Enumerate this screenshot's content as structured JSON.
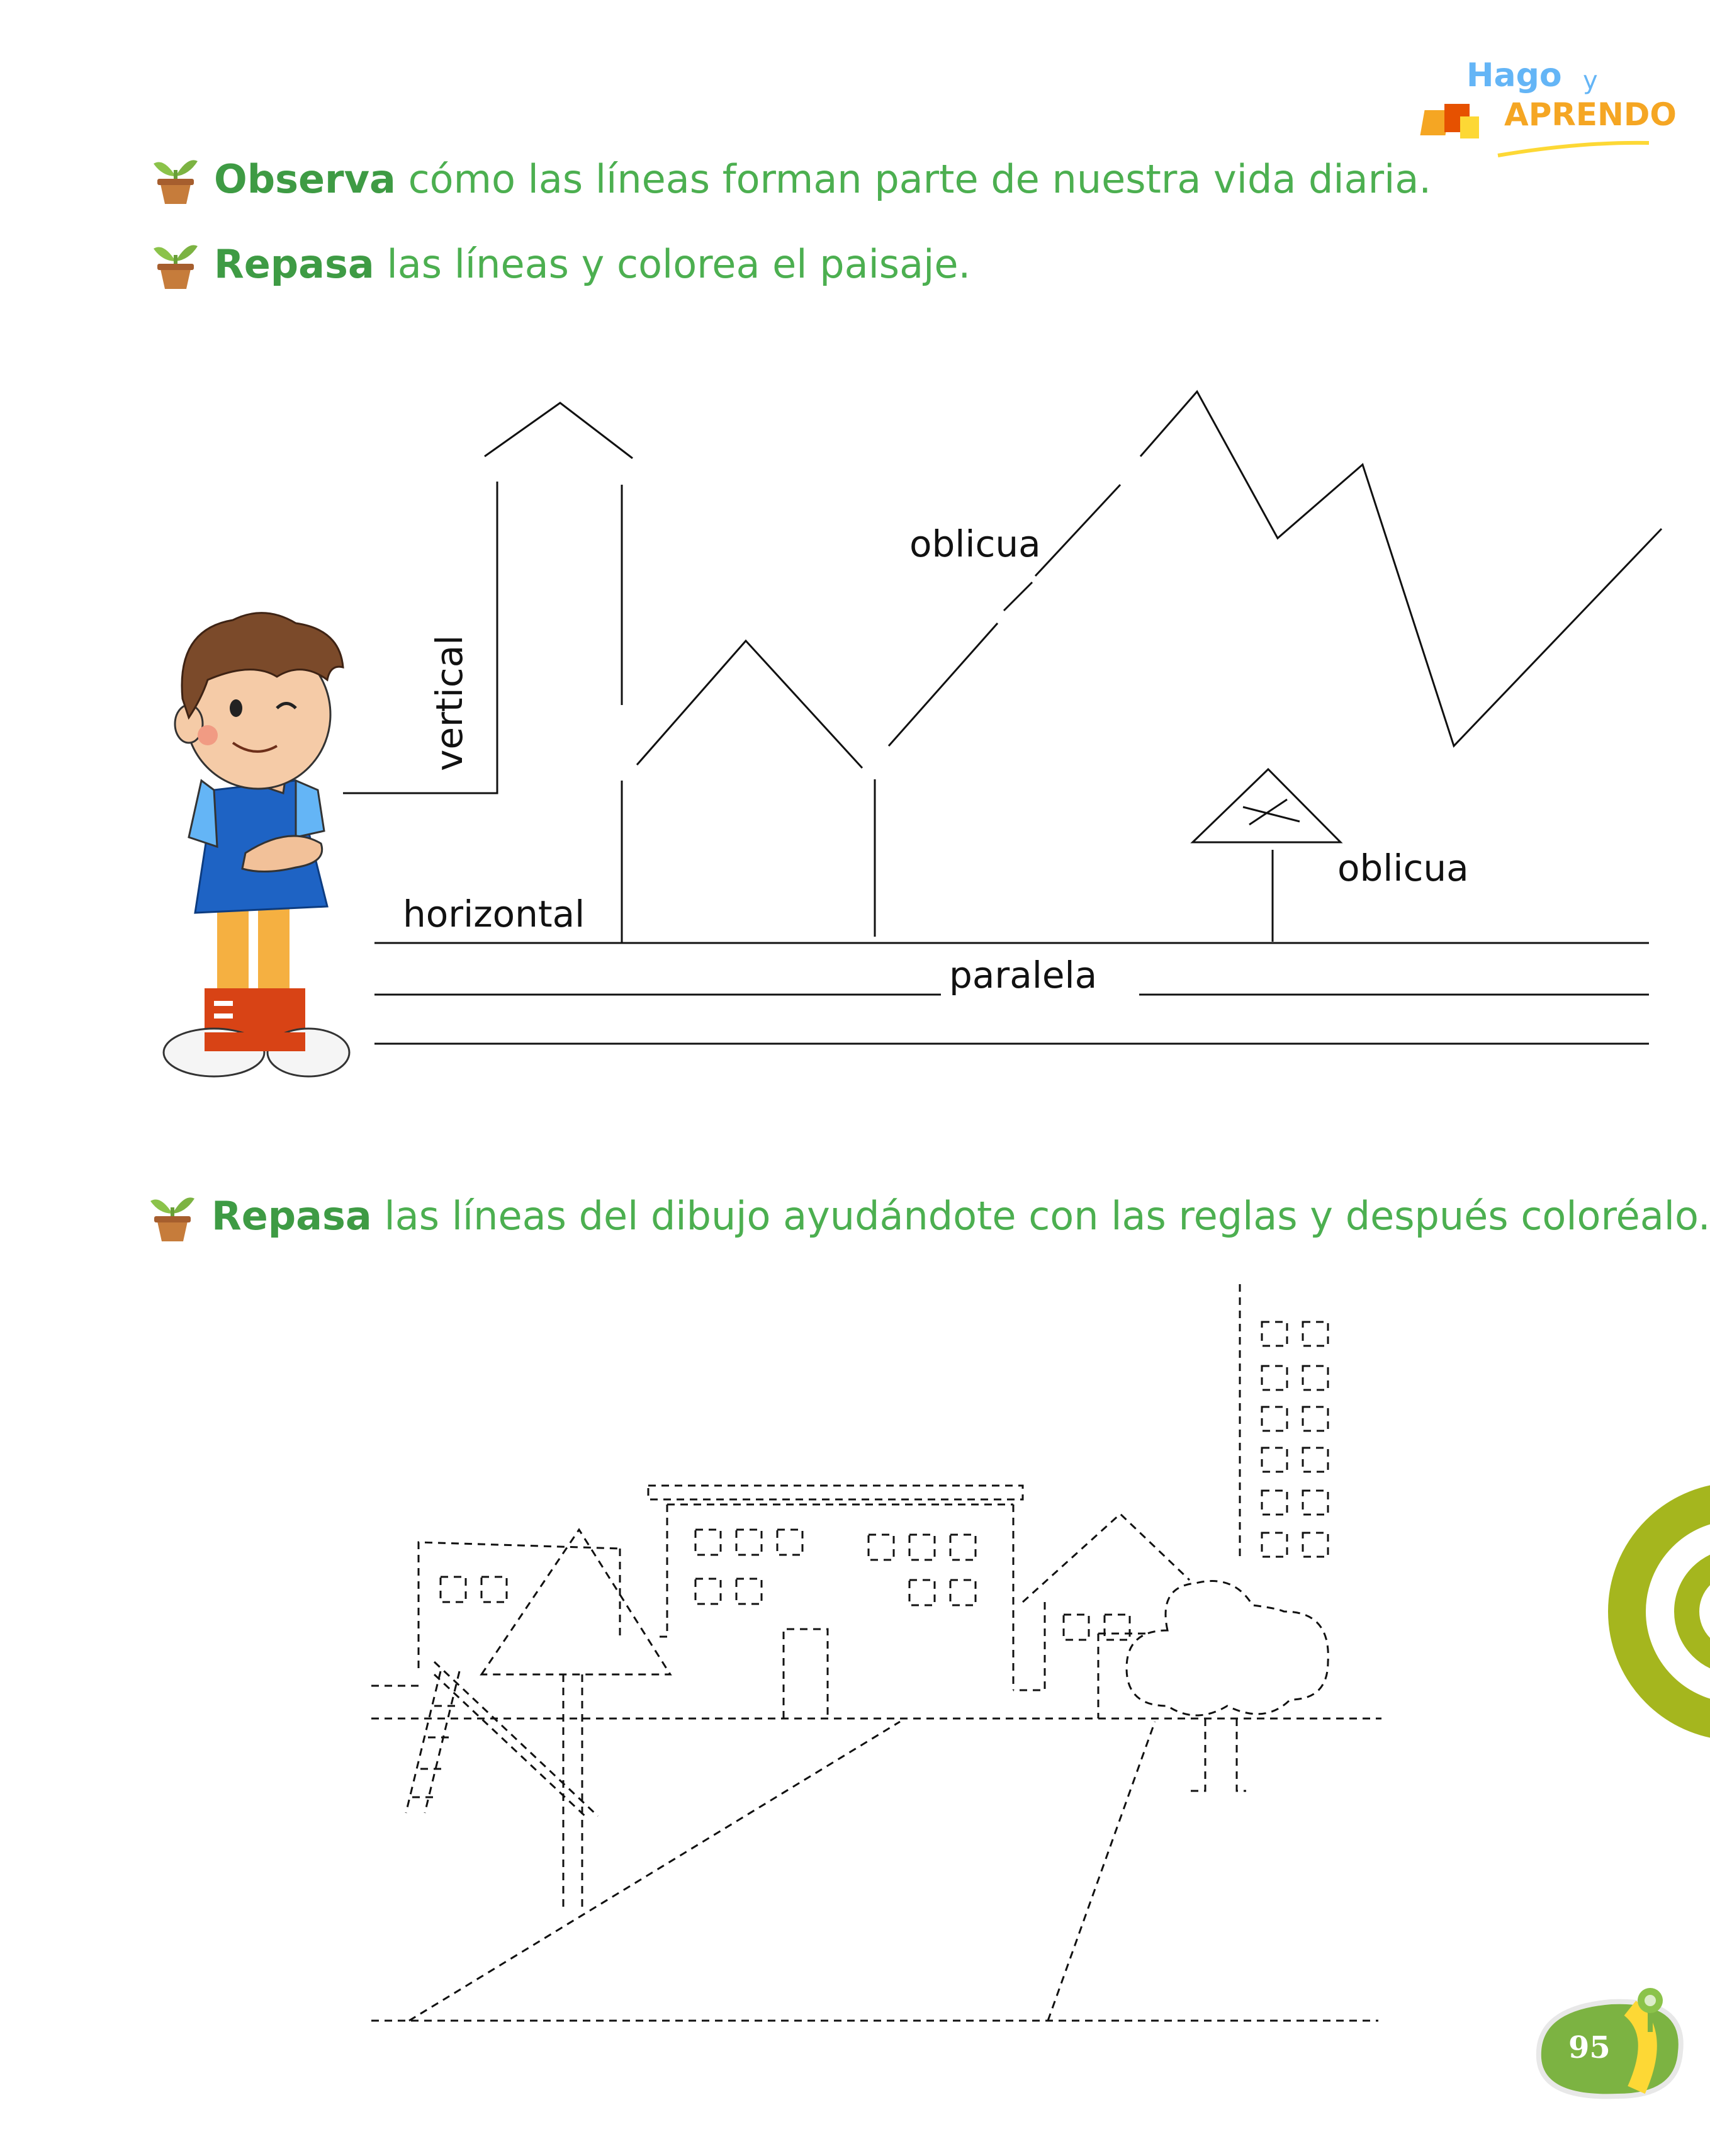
{
  "logo": {
    "line1": "Hago",
    "line2": "y",
    "line3": "APRENDO"
  },
  "instructions": [
    {
      "verb": "Observa",
      "rest": " cómo las líneas forman parte de nuestra vida diaria."
    },
    {
      "verb": "Repasa",
      "rest": " las líneas y colorea el paisaje."
    },
    {
      "verb": "Repasa",
      "rest": " las líneas del dibujo ayudándote con las reglas y después coloréalo."
    }
  ],
  "labels": {
    "vertical": "vertical",
    "horizontal": "horizontal",
    "oblicua_top": "oblicua",
    "oblicua_sign": "oblicua",
    "paralela": "paralela"
  },
  "page_number": "95",
  "colors": {
    "instruction_green": "#4caf50",
    "accent_olive": "#a5b61e",
    "page_badge": "#7cb342"
  }
}
